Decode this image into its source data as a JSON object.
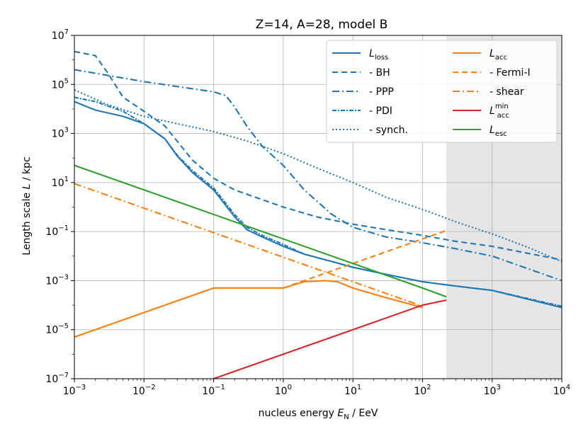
{
  "chart_data": {
    "type": "line",
    "title": "Z=14, A=28, model B",
    "xlabel": "nucleus energy E_N / EeV",
    "ylabel": "Length scale L / kpc",
    "xscale": "log",
    "yscale": "log",
    "xlim": [
      0.001,
      10000
    ],
    "ylim": [
      1e-07,
      10000000.0
    ],
    "grid": true,
    "x_ticks": [
      {
        "base": "10",
        "exp": "−3"
      },
      {
        "base": "10",
        "exp": "−2"
      },
      {
        "base": "10",
        "exp": "−1"
      },
      {
        "base": "10",
        "exp": "0"
      },
      {
        "base": "10",
        "exp": "1"
      },
      {
        "base": "10",
        "exp": "2"
      },
      {
        "base": "10",
        "exp": "3"
      },
      {
        "base": "10",
        "exp": "4"
      }
    ],
    "y_ticks": [
      {
        "base": "10",
        "exp": "−7"
      },
      {
        "base": "10",
        "exp": "−5"
      },
      {
        "base": "10",
        "exp": "−3"
      },
      {
        "base": "10",
        "exp": "−1"
      },
      {
        "base": "10",
        "exp": "1"
      },
      {
        "base": "10",
        "exp": "3"
      },
      {
        "base": "10",
        "exp": "5"
      },
      {
        "base": "10",
        "exp": "7"
      }
    ],
    "shaded_region": {
      "x_from": 220,
      "x_to": 10000,
      "color": "#e5e5e5"
    },
    "series": [
      {
        "name": "L_loss",
        "label_main": "L",
        "label_sub": "loss",
        "label_sup": "",
        "color": "#1f77b4",
        "dash": "solid",
        "points": [
          [
            0.001,
            20000
          ],
          [
            0.002,
            9000
          ],
          [
            0.005,
            5000
          ],
          [
            0.01,
            2500
          ],
          [
            0.02,
            600
          ],
          [
            0.03,
            120
          ],
          [
            0.05,
            25
          ],
          [
            0.1,
            5
          ],
          [
            0.2,
            0.4
          ],
          [
            0.3,
            0.12
          ],
          [
            0.5,
            0.06
          ],
          [
            1,
            0.025
          ],
          [
            2,
            0.012
          ],
          [
            5,
            0.006
          ],
          [
            10,
            0.0035
          ],
          [
            30,
            0.0018
          ],
          [
            100,
            0.0009
          ],
          [
            300,
            0.0006
          ],
          [
            1000,
            0.0004
          ],
          [
            10000,
            8e-05
          ]
        ]
      },
      {
        "name": "BH",
        "label_main": "  - BH",
        "label_sub": "",
        "label_sup": "",
        "color": "#1f77b4",
        "dash": "8,5",
        "points": [
          [
            0.001,
            2200000
          ],
          [
            0.002,
            1500000
          ],
          [
            0.003,
            300000
          ],
          [
            0.005,
            30000
          ],
          [
            0.01,
            8000
          ],
          [
            0.02,
            2000
          ],
          [
            0.05,
            80
          ],
          [
            0.1,
            15
          ],
          [
            0.2,
            5
          ],
          [
            0.5,
            2
          ],
          [
            1,
            1
          ],
          [
            3,
            0.4
          ],
          [
            10,
            0.2
          ],
          [
            30,
            0.12
          ],
          [
            100,
            0.07
          ],
          [
            300,
            0.04
          ],
          [
            1000,
            0.025
          ],
          [
            10000,
            0.007
          ]
        ]
      },
      {
        "name": "PPP",
        "label_main": "  - PPP",
        "label_sub": "",
        "label_sup": "",
        "color": "#1f77b4",
        "dash": "10,4,2,4",
        "points": [
          [
            0.001,
            400000
          ],
          [
            0.01,
            130000
          ],
          [
            0.1,
            50000
          ],
          [
            0.15,
            35000
          ],
          [
            0.2,
            12000
          ],
          [
            0.3,
            2000
          ],
          [
            0.5,
            300
          ],
          [
            1,
            50
          ],
          [
            2,
            5
          ],
          [
            5,
            0.5
          ],
          [
            10,
            0.15
          ],
          [
            30,
            0.06
          ],
          [
            100,
            0.035
          ],
          [
            300,
            0.02
          ],
          [
            1000,
            0.01
          ],
          [
            10000,
            0.001
          ]
        ]
      },
      {
        "name": "PDI",
        "label_main": "  - PDI",
        "label_sub": "",
        "label_sup": "",
        "color": "#1f77b4",
        "dash": "6,2,2,2",
        "points": [
          [
            0.001,
            30000
          ],
          [
            0.002,
            20000
          ],
          [
            0.005,
            8000
          ],
          [
            0.01,
            2500
          ],
          [
            0.02,
            600
          ],
          [
            0.03,
            130
          ],
          [
            0.05,
            30
          ],
          [
            0.1,
            6
          ],
          [
            0.2,
            0.5
          ],
          [
            0.3,
            0.15
          ],
          [
            0.5,
            0.07
          ],
          [
            1,
            0.03
          ],
          [
            2,
            0.012
          ],
          [
            5,
            0.006
          ],
          [
            10,
            0.0035
          ],
          [
            30,
            0.0018
          ],
          [
            100,
            0.0009
          ],
          [
            300,
            0.0006
          ],
          [
            1000,
            0.0004
          ],
          [
            10000,
            9e-05
          ]
        ]
      },
      {
        "name": "synch.",
        "label_main": "  - synch.",
        "label_sub": "",
        "label_sup": "",
        "color": "#1f77b4",
        "dash": "2,3",
        "points": [
          [
            0.001,
            60000
          ],
          [
            0.003,
            15000
          ],
          [
            0.01,
            5000
          ],
          [
            0.03,
            2500
          ],
          [
            0.1,
            1200
          ],
          [
            0.3,
            500
          ],
          [
            1,
            150
          ],
          [
            3,
            40
          ],
          [
            10,
            10
          ],
          [
            30,
            2.5
          ],
          [
            100,
            0.8
          ],
          [
            300,
            0.25
          ],
          [
            1000,
            0.08
          ],
          [
            3000,
            0.025
          ],
          [
            10000,
            0.006
          ]
        ]
      },
      {
        "name": "L_acc",
        "label_main": "L",
        "label_sub": "acc",
        "label_sup": "",
        "color": "#ff7f0e",
        "dash": "solid",
        "points": [
          [
            0.001,
            5e-06
          ],
          [
            0.01,
            5e-05
          ],
          [
            0.1,
            0.0005
          ],
          [
            0.5,
            0.0005
          ],
          [
            1,
            0.0005
          ],
          [
            2,
            0.0009
          ],
          [
            4,
            0.001
          ],
          [
            6,
            0.0009
          ],
          [
            10,
            0.0005
          ],
          [
            30,
            0.0002
          ],
          [
            100,
            8e-05
          ]
        ]
      },
      {
        "name": "Fermi-I",
        "label_main": "  - Fermi-I",
        "label_sub": "",
        "label_sup": "",
        "color": "#ff7f0e",
        "dash": "8,5",
        "points": [
          [
            1,
            0.0005
          ],
          [
            3,
            0.0015
          ],
          [
            10,
            0.005
          ],
          [
            30,
            0.015
          ],
          [
            100,
            0.05
          ],
          [
            220,
            0.11
          ]
        ]
      },
      {
        "name": "shear",
        "label_main": "  - shear",
        "label_sub": "",
        "label_sup": "",
        "color": "#ff7f0e",
        "dash": "10,4,2,4",
        "points": [
          [
            0.001,
            9
          ],
          [
            0.01,
            0.9
          ],
          [
            0.1,
            0.09
          ],
          [
            1,
            0.009
          ],
          [
            10,
            0.0009
          ],
          [
            100,
            9e-05
          ]
        ]
      },
      {
        "name": "L_acc^min",
        "label_main": "L",
        "label_sub": "acc",
        "label_sup": "min",
        "color": "#d62728",
        "dash": "solid",
        "points": [
          [
            0.1,
            1e-07
          ],
          [
            1,
            1e-06
          ],
          [
            10,
            1e-05
          ],
          [
            100,
            0.0001
          ],
          [
            220,
            0.00016
          ]
        ]
      },
      {
        "name": "L_esc",
        "label_main": "L",
        "label_sub": "esc",
        "label_sup": "",
        "color": "#2ca02c",
        "dash": "solid",
        "points": [
          [
            0.001,
            50
          ],
          [
            0.01,
            5
          ],
          [
            0.1,
            0.5
          ],
          [
            1,
            0.05
          ],
          [
            10,
            0.005
          ],
          [
            100,
            0.0005
          ],
          [
            220,
            0.00022
          ]
        ]
      }
    ]
  }
}
